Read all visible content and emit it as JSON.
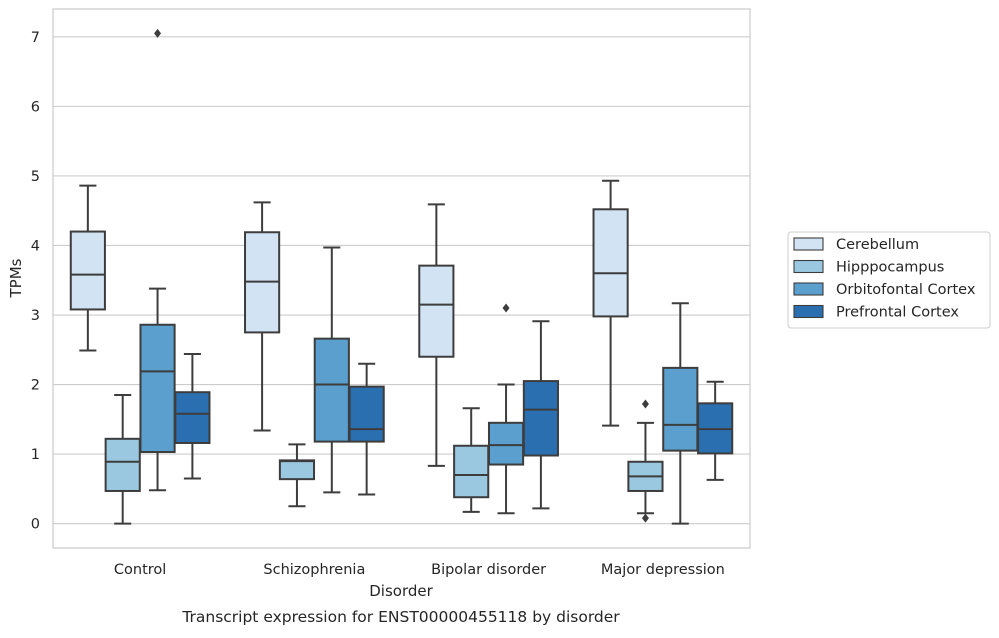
{
  "chart_data": {
    "type": "box",
    "xlabel": "Disorder",
    "ylabel": "TPMs",
    "caption": "Transcript expression for ENST00000455118 by disorder",
    "ylim": [
      -0.35,
      7.4
    ],
    "yticks": [
      0,
      1,
      2,
      3,
      4,
      5,
      6,
      7
    ],
    "grid": "horizontal",
    "legend_position": "right",
    "categories": [
      "Control",
      "Schizophrenia",
      "Bipolar disorder",
      "Major depression"
    ],
    "series": [
      {
        "name": "Cerebellum",
        "color": "#d2e3f3",
        "boxes": [
          {
            "whisker_low": 2.49,
            "q1": 3.08,
            "median": 3.58,
            "q3": 4.2,
            "whisker_high": 4.86,
            "outliers": []
          },
          {
            "whisker_low": 1.34,
            "q1": 2.75,
            "median": 3.48,
            "q3": 4.19,
            "whisker_high": 4.62,
            "outliers": []
          },
          {
            "whisker_low": 0.83,
            "q1": 2.4,
            "median": 3.15,
            "q3": 3.71,
            "whisker_high": 4.59,
            "outliers": []
          },
          {
            "whisker_low": 1.41,
            "q1": 2.98,
            "median": 3.6,
            "q3": 4.52,
            "whisker_high": 4.93,
            "outliers": []
          }
        ]
      },
      {
        "name": "Hipppocampus",
        "color": "#9ac8e0",
        "boxes": [
          {
            "whisker_low": 0.0,
            "q1": 0.47,
            "median": 0.89,
            "q3": 1.22,
            "whisker_high": 1.85,
            "outliers": []
          },
          {
            "whisker_low": 0.25,
            "q1": 0.64,
            "median": 0.9,
            "q3": 0.91,
            "whisker_high": 1.14,
            "outliers": []
          },
          {
            "whisker_low": 0.17,
            "q1": 0.38,
            "median": 0.7,
            "q3": 1.12,
            "whisker_high": 1.66,
            "outliers": []
          },
          {
            "whisker_low": 0.15,
            "q1": 0.47,
            "median": 0.68,
            "q3": 0.89,
            "whisker_high": 1.45,
            "outliers": [
              1.72,
              0.08
            ]
          }
        ]
      },
      {
        "name": "Orbitofontal Cortex",
        "color": "#5a9fcd",
        "boxes": [
          {
            "whisker_low": 0.48,
            "q1": 1.03,
            "median": 2.19,
            "q3": 2.86,
            "whisker_high": 3.38,
            "outliers": [
              7.05
            ]
          },
          {
            "whisker_low": 0.45,
            "q1": 1.18,
            "median": 2.0,
            "q3": 2.66,
            "whisker_high": 3.97,
            "outliers": []
          },
          {
            "whisker_low": 0.15,
            "q1": 0.85,
            "median": 1.13,
            "q3": 1.45,
            "whisker_high": 2.0,
            "outliers": [
              3.1
            ]
          },
          {
            "whisker_low": 0.0,
            "q1": 1.05,
            "median": 1.42,
            "q3": 2.24,
            "whisker_high": 3.17,
            "outliers": []
          }
        ]
      },
      {
        "name": "Prefrontal Cortex",
        "color": "#2a6fb0",
        "boxes": [
          {
            "whisker_low": 0.65,
            "q1": 1.16,
            "median": 1.58,
            "q3": 1.89,
            "whisker_high": 2.44,
            "outliers": []
          },
          {
            "whisker_low": 0.42,
            "q1": 1.18,
            "median": 1.36,
            "q3": 1.97,
            "whisker_high": 2.3,
            "outliers": []
          },
          {
            "whisker_low": 0.22,
            "q1": 0.98,
            "median": 1.64,
            "q3": 2.05,
            "whisker_high": 2.91,
            "outliers": []
          },
          {
            "whisker_low": 0.63,
            "q1": 1.01,
            "median": 1.36,
            "q3": 1.73,
            "whisker_high": 2.04,
            "outliers": []
          }
        ]
      }
    ]
  }
}
